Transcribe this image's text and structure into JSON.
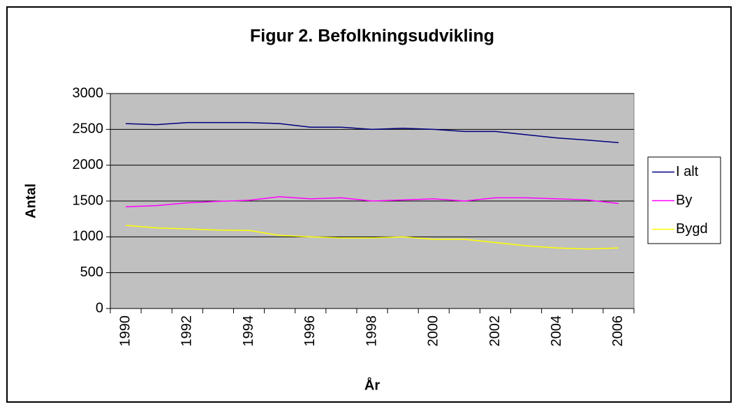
{
  "chart_data": {
    "type": "line",
    "title": "Figur 2. Befolkningsudvikling",
    "x_label": "År",
    "y_label": "Antal",
    "categories": [
      "1990",
      null,
      "1992",
      null,
      "1994",
      null,
      "1996",
      null,
      "1998",
      null,
      "2000",
      null,
      "2002",
      null,
      "2004",
      null,
      "2006"
    ],
    "series": [
      {
        "name": "I alt",
        "color": "#000080",
        "values": [
          2580,
          2565,
          2595,
          2595,
          2595,
          2580,
          2530,
          2530,
          2500,
          2515,
          2500,
          2470,
          2470,
          2425,
          2380,
          2350,
          2315
        ]
      },
      {
        "name": "By",
        "color": "#ff00ff",
        "values": [
          1420,
          1435,
          1475,
          1495,
          1510,
          1560,
          1530,
          1545,
          1500,
          1515,
          1530,
          1500,
          1545,
          1545,
          1530,
          1515,
          1465
        ]
      },
      {
        "name": "Bygd",
        "color": "#ffff00",
        "values": [
          1160,
          1125,
          1110,
          1095,
          1090,
          1020,
          1000,
          985,
          985,
          1000,
          965,
          965,
          920,
          875,
          845,
          830,
          845
        ]
      }
    ],
    "ylim": [
      0,
      3000
    ],
    "yticks": [
      0,
      500,
      1000,
      1500,
      2000,
      2500,
      3000
    ],
    "grid": true,
    "plot_background": "#c0c0c0",
    "legend": "right"
  }
}
